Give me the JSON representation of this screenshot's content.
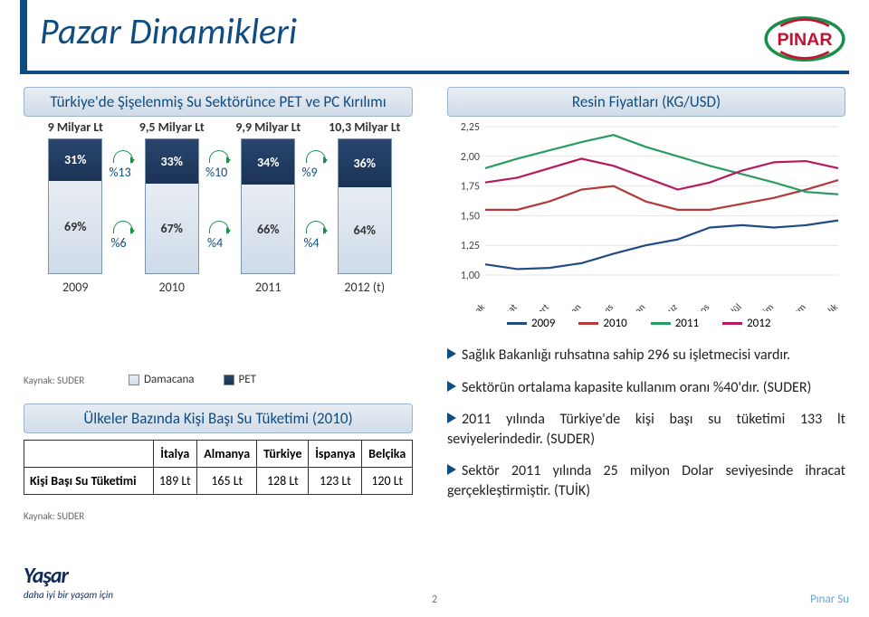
{
  "title": "Pazar Dinamikleri",
  "logos": {
    "pinar": "PINAR",
    "yasar_line1": "Yaşar",
    "yasar_line2": "daha iyi bir yaşam için"
  },
  "colors": {
    "accent": "#0f4c81",
    "seg_top_from": "#2a466f",
    "seg_top_to": "#1a3355",
    "seg_bot_from": "#e8edf3",
    "seg_bot_to": "#cfdbe9",
    "arrow_green": "#1a8f4a",
    "line_2009": "#214b82",
    "line_2010": "#b23a3a",
    "line_2011": "#2a9c5f",
    "line_2012": "#b8185c",
    "grid": "#e4e4e4"
  },
  "left": {
    "header": "Türkiye'de Şişelenmiş Su Sektörünce PET ve PC Kırılımı",
    "volumes": [
      "9 Milyar Lt",
      "9,5 Milyar Lt",
      "9,9 Milyar Lt",
      "10,3 Milyar Lt"
    ],
    "categories": [
      "2009",
      "2010",
      "2011",
      "2012 (t)"
    ],
    "top_pct": [
      31,
      33,
      34,
      36
    ],
    "bot_pct": [
      69,
      67,
      66,
      64
    ],
    "arrows_top": [
      "%13",
      "%10",
      "%9"
    ],
    "arrows_bot": [
      "%6",
      "%4",
      "%4"
    ],
    "legend": {
      "damacana": "Damacana",
      "pet": "PET"
    },
    "source": "Kaynak: SUDER"
  },
  "table": {
    "header": "Ülkeler Bazında Kişi Başı Su Tüketimi (2010)",
    "columns": [
      "İtalya",
      "Almanya",
      "Türkiye",
      "İspanya",
      "Belçika"
    ],
    "row_label": "Kişi Başı Su Tüketimi",
    "row": [
      "189 Lt",
      "165 Lt",
      "128 Lt",
      "123 Lt",
      "120 Lt"
    ],
    "source": "Kaynak: SUDER"
  },
  "right": {
    "header": "Resin Fiyatları (KG/USD)",
    "y_ticks": [
      "2,25",
      "2,00",
      "1,75",
      "1,50",
      "1,25",
      "1,00"
    ],
    "ylim": [
      1.0,
      2.25
    ],
    "x_labels": [
      "Ocak",
      "Şubat",
      "Mart",
      "Nisan",
      "Mayıs",
      "Haziran",
      "Temmuz",
      "Ağustos",
      "Eylül",
      "Ekim",
      "Kasım",
      "Aralık"
    ],
    "series": {
      "2009": [
        1.09,
        1.05,
        1.06,
        1.1,
        1.18,
        1.25,
        1.3,
        1.4,
        1.42,
        1.4,
        1.42,
        1.46
      ],
      "2010": [
        1.55,
        1.55,
        1.62,
        1.72,
        1.75,
        1.62,
        1.55,
        1.55,
        1.6,
        1.65,
        1.72,
        1.8
      ],
      "2011": [
        1.9,
        1.98,
        2.05,
        2.12,
        2.18,
        2.08,
        2.0,
        1.92,
        1.85,
        1.78,
        1.7,
        1.68
      ],
      "2012": [
        1.78,
        1.82,
        1.9,
        1.98,
        1.92,
        1.82,
        1.72,
        1.78,
        1.88,
        1.95,
        1.96,
        1.9
      ]
    },
    "legend": [
      "2009",
      "2010",
      "2011",
      "2012"
    ]
  },
  "bullets": [
    "Sağlık Bakanlığı ruhsatına sahip 296 su işletmecisi vardır.",
    "Sektörün ortalama kapasite kullanım oranı %40'dır. (SUDER)",
    "2011 yılında Türkiye'de kişi başı su tüketimi 133 lt seviyelerindedir. (SUDER)",
    "Sektör 2011 yılında 25 milyon Dolar seviyesinde ihracat gerçekleştirmiştir. (TUİK)"
  ],
  "footer": {
    "page": "2",
    "right": "Pınar Su"
  }
}
